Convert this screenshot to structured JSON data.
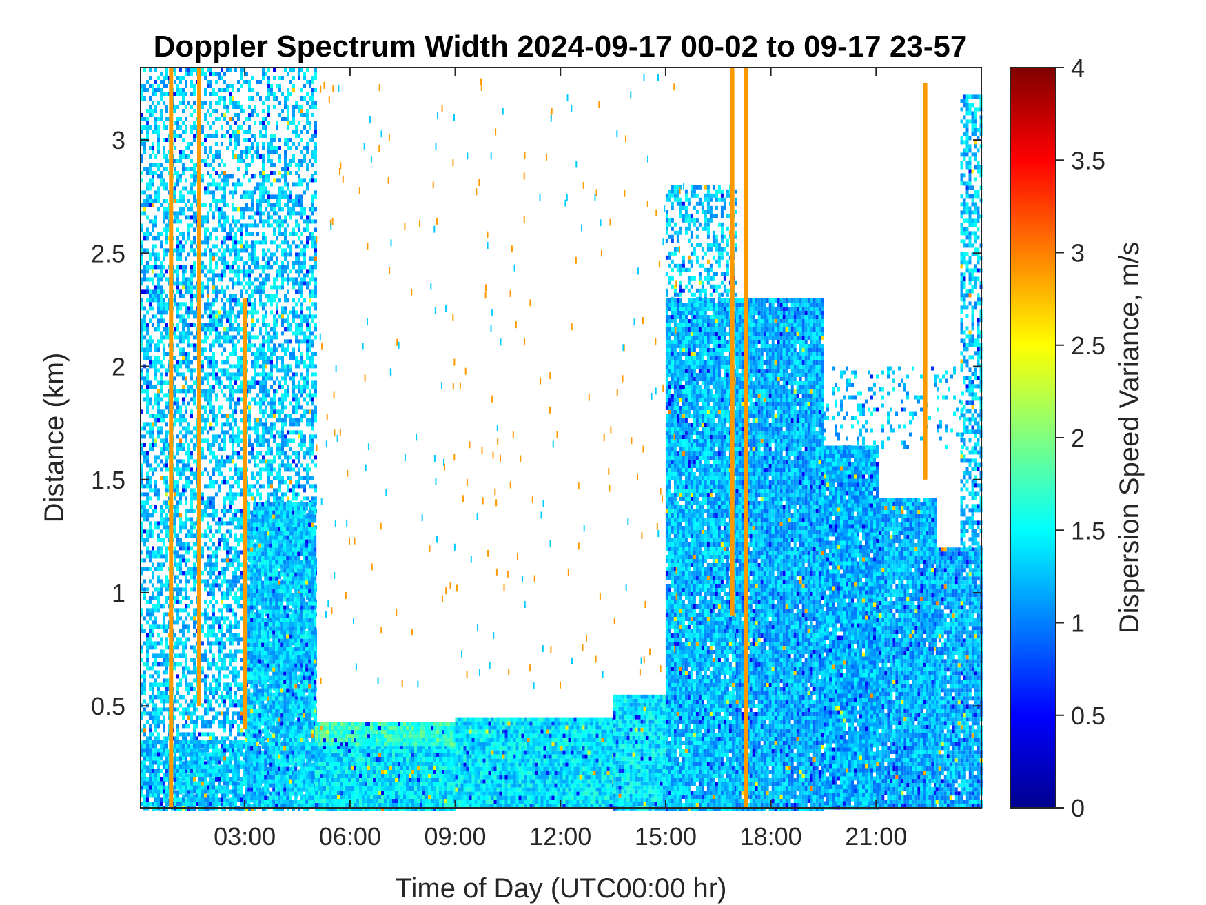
{
  "chart_data": {
    "type": "heatmap",
    "title": "Doppler Spectrum Width 2024-09-17 00-02 to 09-17 23-57",
    "xlabel": "Time of Day (UTC00:00 hr)",
    "ylabel": "Distance (km)",
    "colorbar_label": "Dispersion Speed Variance, m/s",
    "xlim": [
      0.03,
      24.0
    ],
    "ylim": [
      0.05,
      3.32
    ],
    "clim": [
      0,
      4
    ],
    "colormap": "jet",
    "x_ticks": [
      3,
      6,
      9,
      12,
      15,
      18,
      21
    ],
    "x_tick_labels": [
      "03:00",
      "06:00",
      "09:00",
      "12:00",
      "15:00",
      "18:00",
      "21:00"
    ],
    "y_ticks": [
      0.5,
      1,
      1.5,
      2,
      2.5,
      3
    ],
    "y_tick_labels": [
      "0.5",
      "1",
      "1.5",
      "2",
      "2.5",
      "3"
    ],
    "colorbar_ticks": [
      0,
      0.5,
      1,
      1.5,
      2,
      2.5,
      3,
      3.5,
      4
    ],
    "colorbar_tick_labels": [
      "0",
      "0.5",
      "1",
      "1.5",
      "2",
      "2.5",
      "3",
      "3.5",
      "4"
    ],
    "background": "#ffffff",
    "regions": [
      {
        "x": [
          0.03,
          5.0
        ],
        "y": [
          0.05,
          2.85
        ],
        "value": 1.3,
        "fill": 0.55
      },
      {
        "x": [
          0.03,
          5.0
        ],
        "y": [
          2.85,
          3.32
        ],
        "value": 1.3,
        "fill": 0.4
      },
      {
        "x": [
          3.0,
          5.0
        ],
        "y": [
          0.05,
          1.4
        ],
        "value": 1.3,
        "fill": 0.95
      },
      {
        "x": [
          0.03,
          3.0
        ],
        "y": [
          0.05,
          0.35
        ],
        "value": 1.3,
        "fill": 0.8
      },
      {
        "x": [
          5.0,
          9.0
        ],
        "y": [
          0.05,
          0.4
        ],
        "value": 1.4,
        "fill": 1.0
      },
      {
        "x": [
          5.0,
          9.0
        ],
        "y": [
          0.33,
          0.43
        ],
        "value": 1.7,
        "fill": 1.0
      },
      {
        "x": [
          9.0,
          13.5
        ],
        "y": [
          0.05,
          0.45
        ],
        "value": 1.4,
        "fill": 1.0
      },
      {
        "x": [
          13.5,
          15.0
        ],
        "y": [
          0.05,
          0.55
        ],
        "value": 1.4,
        "fill": 1.0
      },
      {
        "x": [
          15.0,
          17.0
        ],
        "y": [
          0.05,
          2.3
        ],
        "value": 1.25,
        "fill": 0.95
      },
      {
        "x": [
          15.0,
          17.0
        ],
        "y": [
          2.3,
          2.8
        ],
        "value": 1.3,
        "fill": 0.45
      },
      {
        "x": [
          17.0,
          19.5
        ],
        "y": [
          0.05,
          2.3
        ],
        "value": 1.2,
        "fill": 0.97
      },
      {
        "x": [
          19.5,
          21.0
        ],
        "y": [
          0.05,
          1.65
        ],
        "value": 1.2,
        "fill": 0.97
      },
      {
        "x": [
          21.0,
          22.7
        ],
        "y": [
          0.05,
          1.42
        ],
        "value": 1.2,
        "fill": 0.97
      },
      {
        "x": [
          22.7,
          24.0
        ],
        "y": [
          0.05,
          1.2
        ],
        "value": 1.2,
        "fill": 0.95
      },
      {
        "x": [
          23.4,
          24.0
        ],
        "y": [
          1.2,
          3.2
        ],
        "value": 1.3,
        "fill": 0.55
      },
      {
        "x": [
          19.5,
          23.5
        ],
        "y": [
          1.65,
          2.0
        ],
        "value": 1.3,
        "fill": 0.2
      }
    ],
    "vertical_bands": [
      {
        "x": 0.9,
        "y": [
          0.05,
          3.32
        ],
        "value": 2.9
      },
      {
        "x": 1.7,
        "y": [
          0.5,
          3.32
        ],
        "value": 2.9
      },
      {
        "x": 3.0,
        "y": [
          0.4,
          2.3
        ],
        "value": 2.9
      },
      {
        "x": 16.9,
        "y": [
          0.9,
          3.32
        ],
        "value": 2.9
      },
      {
        "x": 17.3,
        "y": [
          0.05,
          3.32
        ],
        "value": 2.9
      },
      {
        "x": 22.4,
        "y": [
          1.5,
          3.25
        ],
        "value": 2.9
      }
    ]
  }
}
